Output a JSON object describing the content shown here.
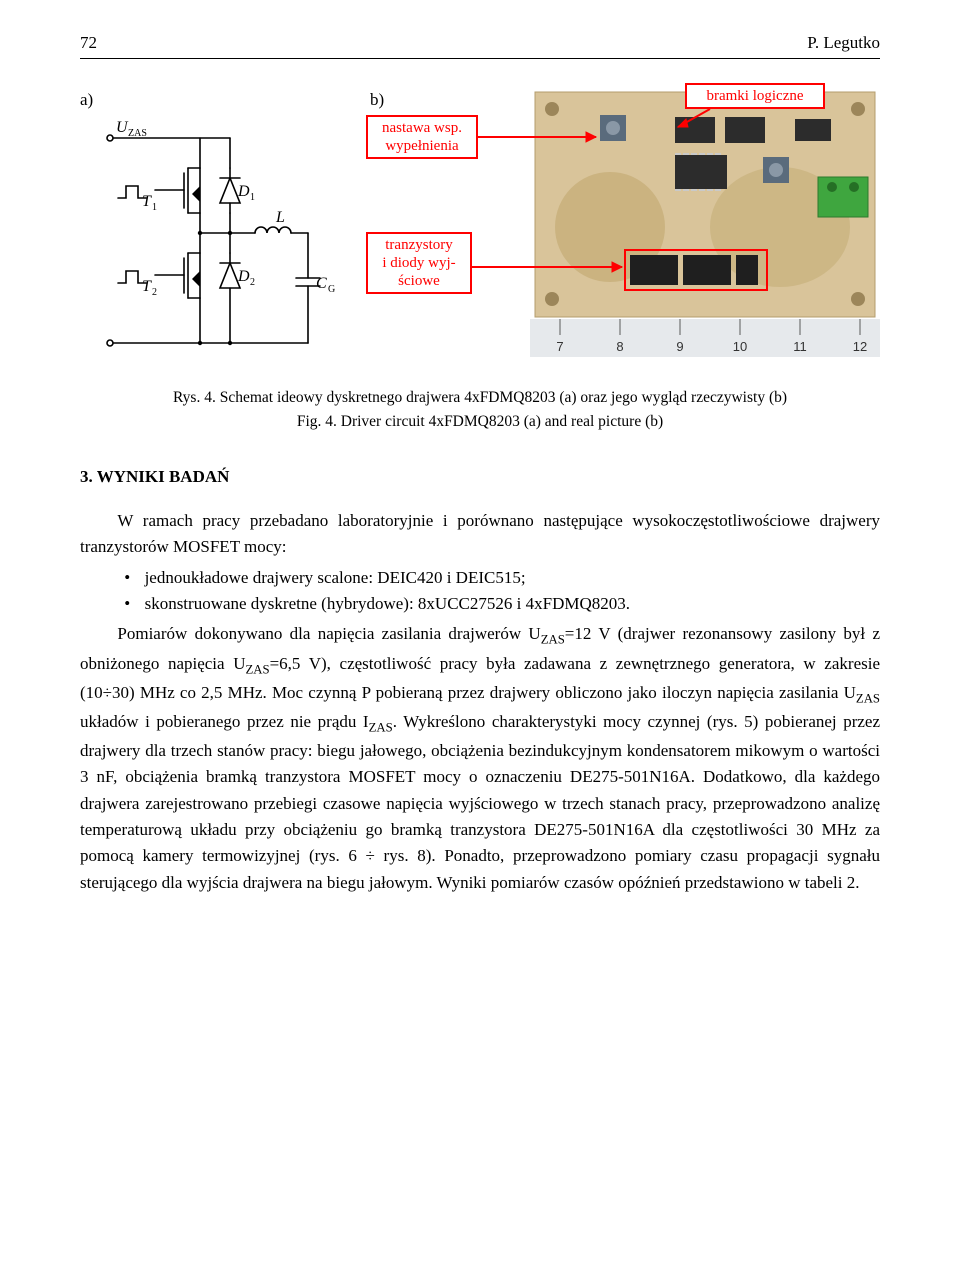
{
  "header": {
    "page_number": "72",
    "author": "P. Legutko"
  },
  "figure": {
    "label_a": "a)",
    "label_b": "b)",
    "schematic": {
      "labels": {
        "uzas": "U",
        "uzas_sub": "ZAS",
        "t1": "T",
        "t1_sub": "1",
        "t2": "T",
        "t2_sub": "2",
        "d1": "D",
        "d1_sub": "1",
        "d2": "D",
        "d2_sub": "2",
        "L": "L",
        "cg": "C",
        "cg_sub": "G"
      },
      "stroke": "#000000",
      "line_width": 1.6
    },
    "callouts": {
      "c1": {
        "text_l1": "nastawa wsp.",
        "text_l2": "wypełnienia"
      },
      "c2": {
        "text": "bramki logiczne"
      },
      "c3": {
        "text_l1": "tranzystory",
        "text_l2": "i diody wyj-",
        "text_l3": "ściowe"
      },
      "color": "#ff0000",
      "border_width": 2
    },
    "pcb": {
      "board_fill": "#d9c49a",
      "trace_fill": "#c2a96f",
      "chip_fill": "#2c2c2c",
      "pin_fill": "#c9c9c9",
      "pot_fill": "#5a6b7c",
      "connector_fill": "#3fa63f",
      "ruler_fill": "#e6e9ec",
      "ruler_marks": [
        "7",
        "8",
        "9",
        "10",
        "11",
        "12"
      ]
    },
    "caption_line1": "Rys. 4. Schemat ideowy dyskretnego drajwera 4xFDMQ8203 (a) oraz jego wygląd rzeczywisty (b)",
    "caption_line2": "Fig. 4. Driver circuit 4xFDMQ8203 (a) and real picture (b)"
  },
  "section": {
    "title": "3. WYNIKI BADAŃ"
  },
  "body": {
    "p1": "W ramach pracy przebadano laboratoryjnie i porównano następujące wysokoczęstotliwościowe drajwery tranzystorów MOSFET mocy:",
    "bullet1": "jednoukładowe drajwery scalone: DEIC420 i DEIC515;",
    "bullet2": "skonstruowane dyskretne (hybrydowe): 8xUCC27526 i 4xFDMQ8203.",
    "p2": "Pomiarów dokonywano dla napięcia zasilania drajwerów UZAS=12 V (drajwer rezonansowy zasilony był z obniżonego napięcia UZAS=6,5 V), częstotliwość pracy była zadawana z zewnętrznego generatora, w zakresie (10÷30) MHz co 2,5 MHz. Moc czynną P pobieraną przez drajwery obliczono jako iloczyn napięcia zasilania UZAS układów i pobieranego przez nie prądu IZAS. Wykreślono charakterystyki mocy czynnej (rys. 5) pobieranej przez drajwery dla trzech stanów pracy: biegu jałowego, obciążenia bezindukcyjnym kondensatorem mikowym o wartości 3 nF, obciążenia bramką tranzystora MOSFET mocy o oznaczeniu DE275-501N16A. Dodatkowo, dla każdego drajwera zarejestrowano przebiegi czasowe napięcia wyjściowego w trzech stanach pracy, przeprowadzono analizę temperaturową układu przy obciążeniu go bramką tranzystora DE275-501N16A dla częstotliwości 30 MHz za pomocą kamery termowizyjnej (rys. 6 ÷ rys. 8). Ponadto, przeprowadzono pomiary czasu propagacji sygnału sterującego dla wyjścia drajwera na biegu jałowym. Wyniki pomiarów czasów opóźnień przedstawiono w tabeli 2."
  }
}
